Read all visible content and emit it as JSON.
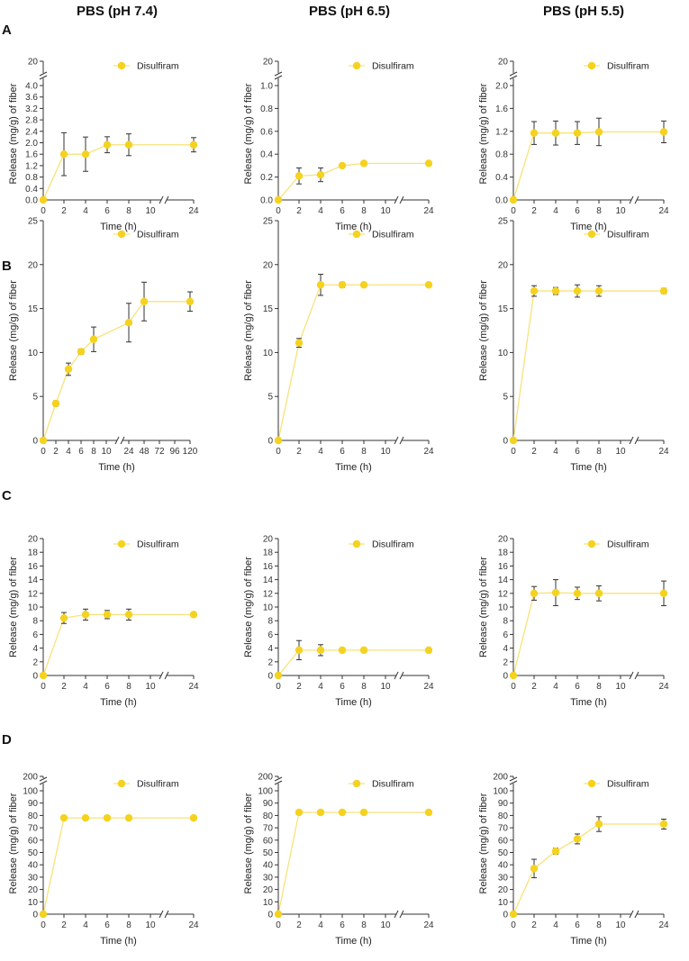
{
  "columns": [
    "PBS (pH 7.4)",
    "PBS (pH 6.5)",
    "PBS (pH 5.5)"
  ],
  "rows": [
    "A",
    "B",
    "C",
    "D"
  ],
  "colors": {
    "series": "#F5D21F",
    "line": "#F8E27A",
    "error": "#333333",
    "axis": "#333333"
  },
  "chart_data": [
    {
      "type": "line",
      "panel": "A1",
      "xlabel": "Time (h)",
      "ylabel": "Release (mg/g) of fiber",
      "x": [
        0,
        2,
        4,
        6,
        8,
        24
      ],
      "x_ticks": [
        0,
        2,
        4,
        6,
        8,
        10,
        24
      ],
      "y_ticks": [
        0.0,
        0.4,
        0.8,
        1.2,
        1.6,
        2.0,
        2.4,
        2.8,
        3.2,
        3.6,
        4.0
      ],
      "y_break_tick": 20,
      "ylim": [
        0,
        4.0
      ],
      "series": [
        {
          "name": "Disulfiram",
          "values": [
            0,
            1.6,
            1.6,
            1.93,
            1.93,
            1.93
          ],
          "errors": [
            0,
            0.75,
            0.6,
            0.28,
            0.38,
            0.25
          ]
        }
      ]
    },
    {
      "type": "line",
      "panel": "A2",
      "xlabel": "Time (h)",
      "ylabel": "Release (mg/g) of fiber",
      "x": [
        0,
        2,
        4,
        6,
        8,
        24
      ],
      "x_ticks": [
        0,
        2,
        4,
        6,
        8,
        10,
        24
      ],
      "y_ticks": [
        0.0,
        0.2,
        0.4,
        0.6,
        0.8,
        1.0
      ],
      "y_break_tick": 20,
      "ylim": [
        0,
        1.0
      ],
      "series": [
        {
          "name": "Disulfiram",
          "values": [
            0,
            0.21,
            0.22,
            0.3,
            0.32,
            0.32
          ],
          "errors": [
            0,
            0.07,
            0.06,
            0.015,
            0.01,
            0.01
          ]
        }
      ]
    },
    {
      "type": "line",
      "panel": "A3",
      "xlabel": "Time (h)",
      "ylabel": "Release (mg/g) of fiber",
      "x": [
        0,
        2,
        4,
        6,
        8,
        24
      ],
      "x_ticks": [
        0,
        2,
        4,
        6,
        8,
        10,
        24
      ],
      "y_ticks": [
        0.0,
        0.4,
        0.8,
        1.2,
        1.6,
        2.0
      ],
      "y_break_tick": 20,
      "ylim": [
        0,
        2.0
      ],
      "series": [
        {
          "name": "Disulfiram",
          "values": [
            0,
            1.17,
            1.17,
            1.17,
            1.19,
            1.19
          ],
          "errors": [
            0,
            0.2,
            0.21,
            0.2,
            0.24,
            0.19
          ]
        }
      ]
    },
    {
      "type": "line",
      "panel": "B1",
      "xlabel": "Time (h)",
      "ylabel": "Release (mg/g) of fiber",
      "x": [
        0,
        2,
        4,
        6,
        8,
        24,
        48,
        120
      ],
      "x_ticks": [
        0,
        2,
        4,
        6,
        8,
        10,
        24,
        48,
        72,
        96,
        120
      ],
      "y_ticks": [
        0,
        5,
        10,
        15,
        20,
        25
      ],
      "ylim": [
        0,
        25
      ],
      "series": [
        {
          "name": "Disulfiram",
          "values": [
            0,
            4.2,
            8.1,
            10.1,
            11.5,
            13.4,
            15.8,
            15.8
          ],
          "errors": [
            0,
            0.3,
            0.7,
            0.3,
            1.4,
            2.2,
            2.2,
            1.1
          ]
        }
      ]
    },
    {
      "type": "line",
      "panel": "B2",
      "xlabel": "Time (h)",
      "ylabel": "Release (mg/g) of fiber",
      "x": [
        0,
        2,
        4,
        6,
        8,
        24
      ],
      "x_ticks": [
        0,
        2,
        4,
        6,
        8,
        10,
        24
      ],
      "y_ticks": [
        0,
        5,
        10,
        15,
        20,
        25
      ],
      "ylim": [
        0,
        25
      ],
      "series": [
        {
          "name": "Disulfiram",
          "values": [
            0,
            11.1,
            17.7,
            17.7,
            17.7,
            17.7
          ],
          "errors": [
            0,
            0.5,
            1.2,
            0.3,
            0.2,
            0.2
          ]
        }
      ]
    },
    {
      "type": "line",
      "panel": "B3",
      "xlabel": "Time (h)",
      "ylabel": "Release (mg/g) of fiber",
      "x": [
        0,
        2,
        4,
        6,
        8,
        24
      ],
      "x_ticks": [
        0,
        2,
        4,
        6,
        8,
        10,
        24
      ],
      "y_ticks": [
        0,
        5,
        10,
        15,
        20,
        25
      ],
      "ylim": [
        0,
        25
      ],
      "series": [
        {
          "name": "Disulfiram",
          "values": [
            0,
            17.0,
            17.0,
            17.0,
            17.0,
            17.0
          ],
          "errors": [
            0,
            0.6,
            0.4,
            0.7,
            0.6,
            0.3
          ]
        }
      ]
    },
    {
      "type": "line",
      "panel": "C1",
      "xlabel": "Time (h)",
      "ylabel": "Release (mg/g) of fiber",
      "x": [
        0,
        2,
        4,
        6,
        8,
        24
      ],
      "x_ticks": [
        0,
        2,
        4,
        6,
        8,
        10,
        24
      ],
      "y_ticks": [
        0,
        2,
        4,
        6,
        8,
        10,
        12,
        14,
        16,
        18,
        20
      ],
      "ylim": [
        0,
        20
      ],
      "series": [
        {
          "name": "Disulfiram",
          "values": [
            0,
            8.4,
            8.9,
            8.9,
            8.9,
            8.9
          ],
          "errors": [
            0,
            0.8,
            0.8,
            0.6,
            0.8,
            0.2
          ]
        }
      ]
    },
    {
      "type": "line",
      "panel": "C2",
      "xlabel": "Time (h)",
      "ylabel": "Release (mg/g) of fiber",
      "x": [
        0,
        2,
        4,
        6,
        8,
        24
      ],
      "x_ticks": [
        0,
        2,
        4,
        6,
        8,
        10,
        24
      ],
      "y_ticks": [
        0,
        2,
        4,
        6,
        8,
        10,
        12,
        14,
        16,
        18,
        20
      ],
      "ylim": [
        0,
        20
      ],
      "series": [
        {
          "name": "Disulfiram",
          "values": [
            0,
            3.7,
            3.7,
            3.7,
            3.7,
            3.7
          ],
          "errors": [
            0,
            1.4,
            0.8,
            0.2,
            0.2,
            0.2
          ]
        }
      ]
    },
    {
      "type": "line",
      "panel": "C3",
      "xlabel": "Time (h)",
      "ylabel": "Release (mg/g) of fiber",
      "x": [
        0,
        2,
        4,
        6,
        8,
        24
      ],
      "x_ticks": [
        0,
        2,
        4,
        6,
        8,
        10,
        24
      ],
      "y_ticks": [
        0,
        2,
        4,
        6,
        8,
        10,
        12,
        14,
        16,
        18,
        20
      ],
      "ylim": [
        0,
        20
      ],
      "series": [
        {
          "name": "Disulfiram",
          "values": [
            0,
            12.0,
            12.1,
            12.0,
            12.0,
            12.0
          ],
          "errors": [
            0,
            1.0,
            1.9,
            0.9,
            1.1,
            1.8
          ]
        }
      ]
    },
    {
      "type": "line",
      "panel": "D1",
      "xlabel": "Time (h)",
      "ylabel": "Release (mg/g) of fiber",
      "x": [
        0,
        2,
        4,
        6,
        8,
        24
      ],
      "x_ticks": [
        0,
        2,
        4,
        6,
        8,
        10,
        24
      ],
      "y_ticks": [
        0,
        10,
        20,
        30,
        40,
        50,
        60,
        70,
        80,
        90,
        100
      ],
      "y_break_tick": 200,
      "ylim": [
        0,
        100
      ],
      "series": [
        {
          "name": "Disulfiram",
          "values": [
            0,
            78,
            78,
            78,
            78,
            78
          ],
          "errors": [
            0,
            0.5,
            0.5,
            0.5,
            0.5,
            0.5
          ]
        }
      ]
    },
    {
      "type": "line",
      "panel": "D2",
      "xlabel": "Time (h)",
      "ylabel": "Release (mg/g) of fiber",
      "x": [
        0,
        2,
        4,
        6,
        8,
        24
      ],
      "x_ticks": [
        0,
        2,
        4,
        6,
        8,
        10,
        24
      ],
      "y_ticks": [
        0,
        10,
        20,
        30,
        40,
        50,
        60,
        70,
        80,
        90,
        100
      ],
      "y_break_tick": 200,
      "ylim": [
        0,
        100
      ],
      "series": [
        {
          "name": "Disulfiram",
          "values": [
            0,
            82.5,
            82.5,
            82.5,
            82.5,
            82.5
          ],
          "errors": [
            0,
            0.5,
            0.5,
            0.5,
            0.5,
            0.5
          ]
        }
      ]
    },
    {
      "type": "line",
      "panel": "D3",
      "xlabel": "Time (h)",
      "ylabel": "Release (mg/g) of fiber",
      "x": [
        0,
        2,
        4,
        6,
        8,
        24
      ],
      "x_ticks": [
        0,
        2,
        4,
        6,
        8,
        10,
        24
      ],
      "y_ticks": [
        0,
        10,
        20,
        30,
        40,
        50,
        60,
        70,
        80,
        90,
        100
      ],
      "y_break_tick": 200,
      "ylim": [
        0,
        100
      ],
      "series": [
        {
          "name": "Disulfiram",
          "values": [
            0,
            37,
            51,
            61,
            73,
            73
          ],
          "errors": [
            0,
            7.5,
            2.5,
            4,
            6,
            4
          ]
        }
      ]
    }
  ]
}
